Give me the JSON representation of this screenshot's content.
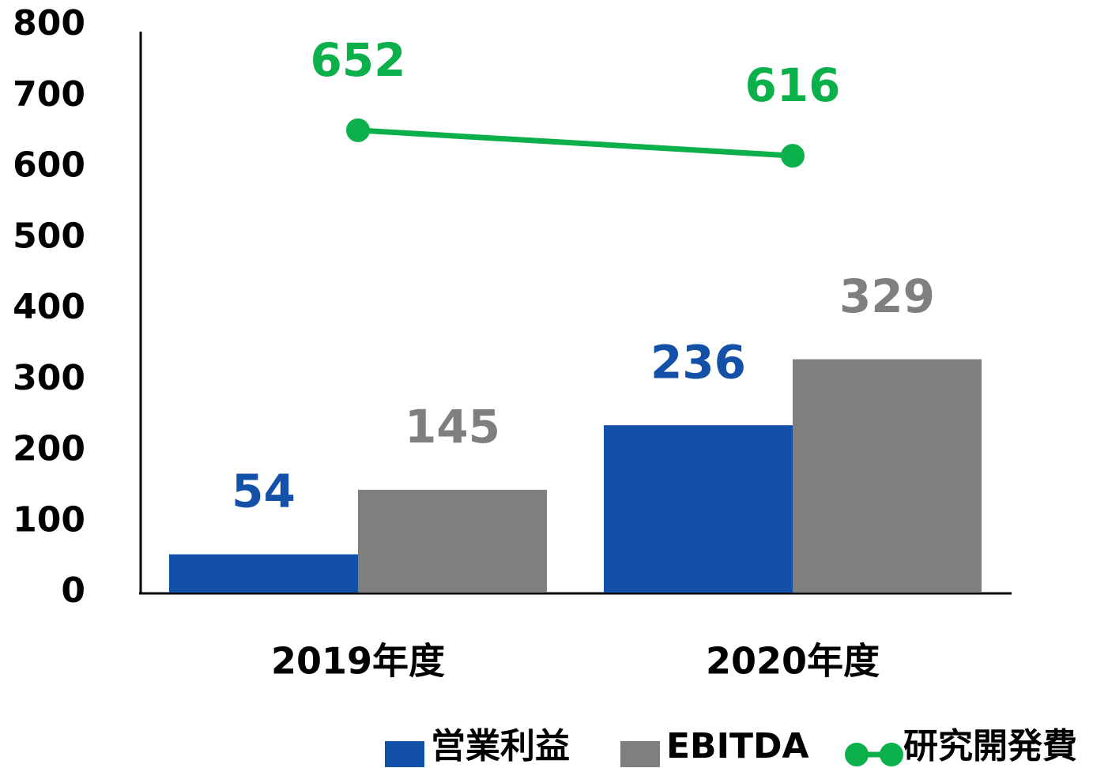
{
  "chart_data": {
    "type": "bar",
    "categories": [
      "2019年度",
      "2020年度"
    ],
    "series": [
      {
        "name": "営業利益",
        "color": "#1351a8",
        "values": [
          54,
          236
        ]
      },
      {
        "name": "EBITDA",
        "color": "#7f7f7f",
        "values": [
          145,
          329
        ]
      },
      {
        "name": "研究開発費",
        "color": "#0bb04b",
        "type": "line",
        "values": [
          652,
          616
        ]
      }
    ],
    "ylim": [
      0,
      800
    ],
    "yticks": [
      0,
      100,
      200,
      300,
      400,
      500,
      600,
      700,
      800
    ],
    "grid": false,
    "legend": "bottom"
  }
}
